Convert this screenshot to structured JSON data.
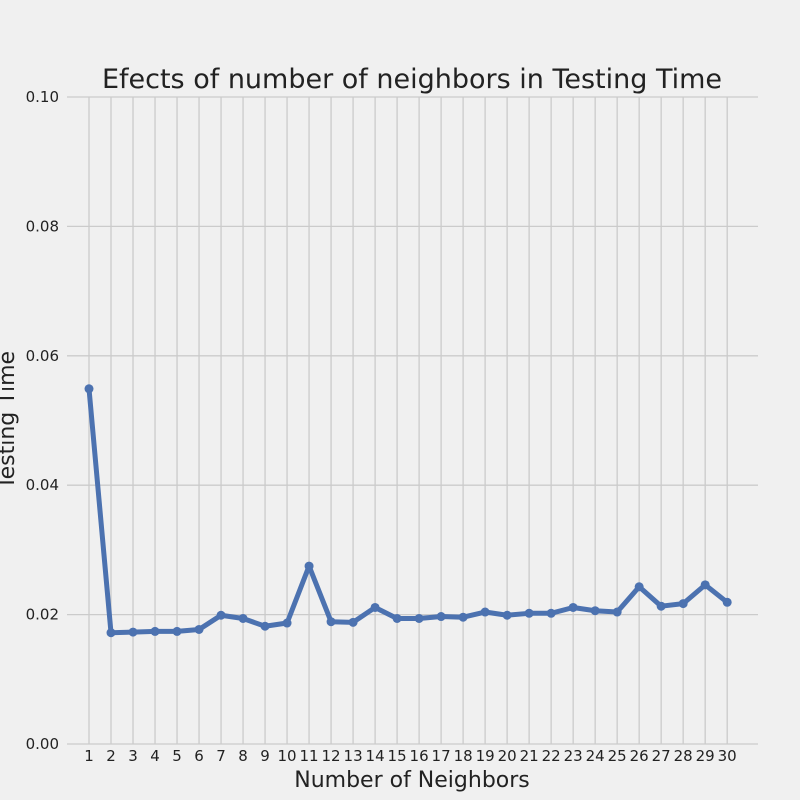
{
  "chart_data": {
    "type": "line",
    "title": "Efects of number of neighbors in Testing Time",
    "xlabel": "Number of Neighbors",
    "ylabel": "Testing Time",
    "x": [
      1,
      2,
      3,
      4,
      5,
      6,
      7,
      8,
      9,
      10,
      11,
      12,
      13,
      14,
      15,
      16,
      17,
      18,
      19,
      20,
      21,
      22,
      23,
      24,
      25,
      26,
      27,
      28,
      29,
      30
    ],
    "x_ticks": [
      "1",
      "2",
      "3",
      "4",
      "5",
      "6",
      "7",
      "8",
      "9",
      "10",
      "11",
      "12",
      "13",
      "14",
      "15",
      "16",
      "17",
      "18",
      "19",
      "20",
      "21",
      "22",
      "23",
      "24",
      "25",
      "26",
      "27",
      "28",
      "29",
      "30"
    ],
    "series": [
      {
        "values": [
          0.0549,
          0.0172,
          0.0173,
          0.0174,
          0.0174,
          0.0177,
          0.0199,
          0.0194,
          0.0182,
          0.0187,
          0.0275,
          0.0189,
          0.0188,
          0.0211,
          0.0194,
          0.0194,
          0.0197,
          0.0196,
          0.0204,
          0.0199,
          0.0202,
          0.0202,
          0.0211,
          0.0206,
          0.0204,
          0.0243,
          0.0213,
          0.0217,
          0.0246,
          0.0219
        ],
        "color": "#4c72b0"
      }
    ],
    "y_ticks": [
      "0.00",
      "0.02",
      "0.04",
      "0.06",
      "0.08",
      "0.10"
    ],
    "y_tick_values": [
      0,
      0.02,
      0.04,
      0.06,
      0.08,
      0.1
    ],
    "xlim": [
      0,
      31.4
    ],
    "ylim": [
      0,
      0.1
    ],
    "grid": true,
    "legend": "none"
  }
}
